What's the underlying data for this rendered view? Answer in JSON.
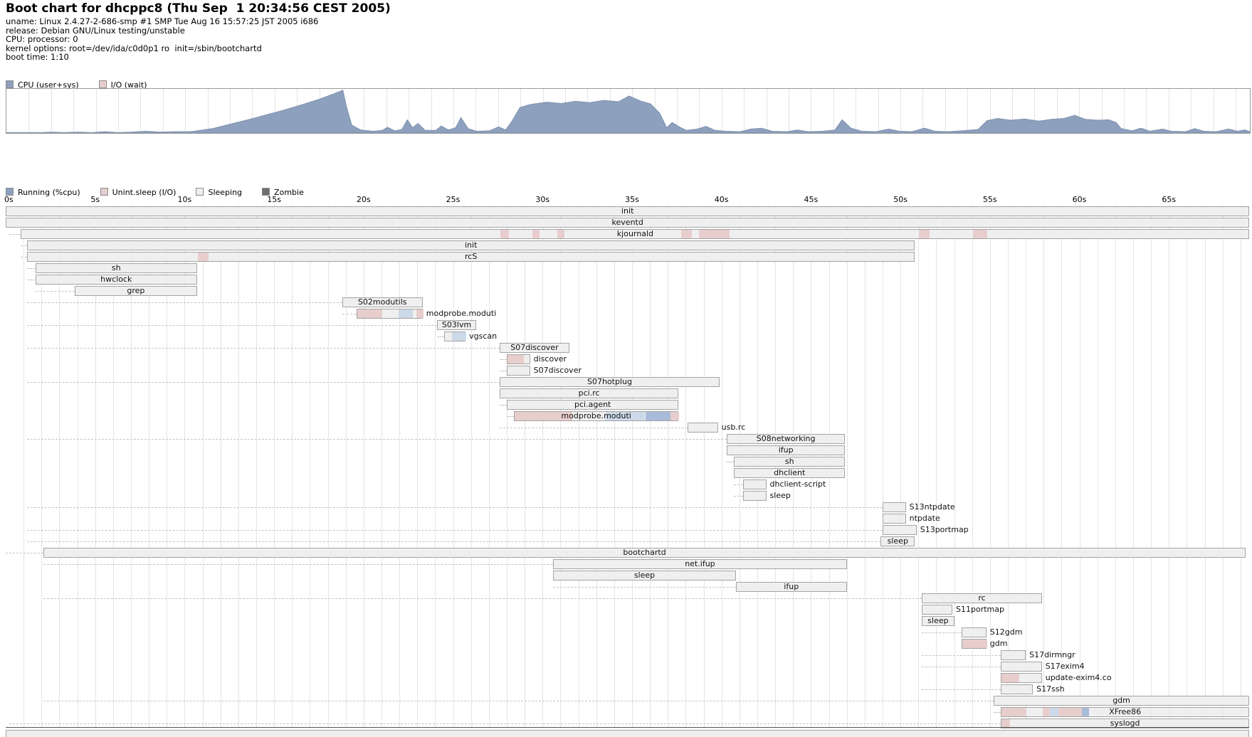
{
  "header": {
    "title": "Boot chart for dhcppc8 (Thu Sep  1 20:34:56 CEST 2005)",
    "info_lines": [
      "uname: Linux 2.4.27-2-686-smp #1 SMP Tue Aug 16 15:57:25 JST 2005 i686",
      "release: Debian GNU/Linux testing/unstable",
      "CPU: processor: 0",
      "kernel options: root=/dev/ida/c0d0p1 ro  init=/sbin/bootchartd",
      "boot time: 1:10"
    ]
  },
  "colors": {
    "running_blue": "#8da0bd",
    "running_blue_stroke": "#7e91af",
    "io_pink": "#e8cdcd",
    "sleeping_gray": "#f0efef",
    "zombie_gray": "#6e6e6e",
    "seg_pink": "#e8cdcd",
    "seg_lightblue": "#ccd9e8",
    "seg_blue": "#a7bcd8"
  },
  "cpu_legend": {
    "items": [
      {
        "label": "CPU (user+sys)",
        "color": "#8da0bd"
      },
      {
        "label": "I/O (wait)",
        "color": "#e8cdcd"
      }
    ]
  },
  "proc_legend": {
    "items": [
      {
        "label": "Running (%cpu)",
        "color": "#8da0bd"
      },
      {
        "label": "Unint.sleep (I/O)",
        "color": "#e8cdcd"
      },
      {
        "label": "Sleeping",
        "color": "#f0efef"
      },
      {
        "label": "Zombie",
        "color": "#6e6e6e"
      }
    ]
  },
  "chart_data": [
    {
      "type": "area",
      "title": "CPU usage",
      "legend": [
        "CPU (user+sys)",
        "I/O (wait)"
      ],
      "xlim": [
        0,
        69.5
      ],
      "ylim": [
        0,
        100
      ],
      "grid": true,
      "series": [
        {
          "name": "CPU (user+sys)",
          "points": [
            [
              0,
              1
            ],
            [
              2,
              1
            ],
            [
              2.5,
              2
            ],
            [
              3.2,
              1
            ],
            [
              4,
              2
            ],
            [
              4.8,
              1
            ],
            [
              5.5,
              3
            ],
            [
              6.2,
              1
            ],
            [
              7,
              2
            ],
            [
              7.8,
              4
            ],
            [
              8.6,
              2
            ],
            [
              9.4,
              3
            ],
            [
              10.2,
              3
            ],
            [
              10.5,
              4
            ],
            [
              11.5,
              10
            ],
            [
              12.5,
              20
            ],
            [
              13.5,
              30
            ],
            [
              14.5,
              41
            ],
            [
              15.5,
              52
            ],
            [
              16.5,
              64
            ],
            [
              17.5,
              77
            ],
            [
              18.3,
              89
            ],
            [
              18.8,
              97
            ],
            [
              19.0,
              60
            ],
            [
              19.3,
              18
            ],
            [
              19.8,
              7
            ],
            [
              20.5,
              4
            ],
            [
              21.0,
              6
            ],
            [
              21.3,
              13
            ],
            [
              21.7,
              5
            ],
            [
              22.1,
              8
            ],
            [
              22.4,
              30
            ],
            [
              22.7,
              12
            ],
            [
              23.0,
              22
            ],
            [
              23.4,
              6
            ],
            [
              24.0,
              6
            ],
            [
              24.3,
              16
            ],
            [
              24.7,
              7
            ],
            [
              25.1,
              12
            ],
            [
              25.4,
              35
            ],
            [
              25.8,
              10
            ],
            [
              26.3,
              4
            ],
            [
              27.0,
              5
            ],
            [
              27.5,
              14
            ],
            [
              27.9,
              7
            ],
            [
              28.3,
              30
            ],
            [
              28.7,
              58
            ],
            [
              29.3,
              65
            ],
            [
              30.2,
              70
            ],
            [
              31.0,
              67
            ],
            [
              31.8,
              72
            ],
            [
              32.6,
              69
            ],
            [
              33.4,
              74
            ],
            [
              34.2,
              71
            ],
            [
              34.8,
              84
            ],
            [
              35.4,
              73
            ],
            [
              36.0,
              66
            ],
            [
              36.5,
              45
            ],
            [
              36.9,
              12
            ],
            [
              37.2,
              24
            ],
            [
              37.6,
              14
            ],
            [
              38.0,
              6
            ],
            [
              38.6,
              9
            ],
            [
              39.1,
              15
            ],
            [
              39.6,
              6
            ],
            [
              40.2,
              4
            ],
            [
              41.0,
              3
            ],
            [
              41.6,
              9
            ],
            [
              42.2,
              11
            ],
            [
              42.8,
              4
            ],
            [
              43.6,
              3
            ],
            [
              44.2,
              7
            ],
            [
              44.8,
              3
            ],
            [
              45.6,
              4
            ],
            [
              46.3,
              7
            ],
            [
              46.7,
              30
            ],
            [
              47.2,
              11
            ],
            [
              47.8,
              4
            ],
            [
              48.6,
              3
            ],
            [
              49.3,
              9
            ],
            [
              49.9,
              4
            ],
            [
              50.6,
              3
            ],
            [
              51.3,
              11
            ],
            [
              51.9,
              4
            ],
            [
              52.6,
              3
            ],
            [
              53.4,
              5
            ],
            [
              54.3,
              8
            ],
            [
              54.8,
              28
            ],
            [
              55.4,
              33
            ],
            [
              56.1,
              29
            ],
            [
              56.9,
              32
            ],
            [
              57.7,
              27
            ],
            [
              58.4,
              31
            ],
            [
              59.1,
              33
            ],
            [
              59.7,
              40
            ],
            [
              60.3,
              31
            ],
            [
              61.0,
              29
            ],
            [
              61.6,
              30
            ],
            [
              62.0,
              24
            ],
            [
              62.3,
              10
            ],
            [
              62.9,
              5
            ],
            [
              63.4,
              11
            ],
            [
              63.9,
              4
            ],
            [
              64.6,
              9
            ],
            [
              65.1,
              4
            ],
            [
              65.9,
              3
            ],
            [
              66.4,
              10
            ],
            [
              66.9,
              4
            ],
            [
              67.6,
              3
            ],
            [
              68.3,
              9
            ],
            [
              68.8,
              4
            ],
            [
              69.2,
              7
            ],
            [
              69.5,
              3
            ]
          ]
        }
      ]
    },
    {
      "type": "gantt",
      "title": "Process chart",
      "legend": [
        "Running (%cpu)",
        "Unint.sleep (I/O)",
        "Sleeping",
        "Zombie"
      ],
      "xlim": [
        0,
        69.5
      ],
      "tick_seconds": [
        0,
        5,
        10,
        15,
        20,
        25,
        30,
        35,
        40,
        45,
        50,
        55,
        60,
        65
      ],
      "tick_labels": [
        "0s",
        "5s",
        "10s",
        "15s",
        "20s",
        "25s",
        "30s",
        "35s",
        "40s",
        "45s",
        "50s",
        "55s",
        "60s",
        "65s"
      ],
      "rows": [
        {
          "label": "init",
          "start": 0,
          "end": 69.5,
          "pos": "c"
        },
        {
          "label": "keventd",
          "start": 0,
          "end": 69.5,
          "pos": "c"
        },
        {
          "label": "kjournald",
          "start": 0.85,
          "end": 69.5,
          "pos": "c",
          "conn": 0.2,
          "segs": [
            [
              27.6,
              28.1,
              "pink"
            ],
            [
              29.4,
              29.8,
              "pink"
            ],
            [
              30.8,
              31.2,
              "pink"
            ],
            [
              37.7,
              38.3,
              "pink"
            ],
            [
              38.7,
              40.4,
              "pink"
            ],
            [
              51.0,
              51.6,
              "pink"
            ],
            [
              54.0,
              54.8,
              "pink"
            ]
          ]
        },
        {
          "label": "init",
          "start": 1.2,
          "end": 50.8,
          "pos": "c",
          "conn": 0.85
        },
        {
          "label": "rcS",
          "start": 1.2,
          "end": 50.8,
          "pos": "c",
          "conn": 0.85,
          "segs": [
            [
              10.7,
              11.3,
              "pink"
            ]
          ]
        },
        {
          "label": "sh",
          "start": 1.65,
          "end": 10.7,
          "pos": "c",
          "conn": 1.2
        },
        {
          "label": "hwclock",
          "start": 1.65,
          "end": 10.7,
          "pos": "c",
          "conn": 1.2
        },
        {
          "label": "grep",
          "start": 3.85,
          "end": 10.7,
          "pos": "c",
          "conn": 1.65
        },
        {
          "label": "S02modutils",
          "start": 18.8,
          "end": 23.3,
          "pos": "c",
          "conn": 1.2
        },
        {
          "label": "modprobe.moduti",
          "start": 19.6,
          "end": 23.3,
          "pos": "r",
          "conn": 18.8,
          "segs": [
            [
              19.6,
              21.0,
              "pink"
            ],
            [
              21.9,
              22.7,
              "lblue"
            ],
            [
              22.9,
              23.3,
              "pink"
            ]
          ]
        },
        {
          "label": "S03lvm",
          "start": 24.1,
          "end": 26.3,
          "pos": "c",
          "conn": 1.2
        },
        {
          "label": "vgscan",
          "start": 24.5,
          "end": 25.7,
          "pos": "r",
          "conn": 24.1,
          "segs": [
            [
              24.9,
              25.7,
              "lblue"
            ]
          ]
        },
        {
          "label": "S07discover",
          "start": 27.6,
          "end": 31.5,
          "pos": "c",
          "conn": 1.2
        },
        {
          "label": "discover",
          "start": 28.0,
          "end": 29.3,
          "pos": "r",
          "conn": 27.6,
          "segs": [
            [
              28.0,
              28.9,
              "pink"
            ]
          ]
        },
        {
          "label": "S07discover",
          "start": 28.0,
          "end": 29.3,
          "pos": "r",
          "conn": 27.6
        },
        {
          "label": "S07hotplug",
          "start": 27.6,
          "end": 39.9,
          "pos": "c",
          "conn": 1.2
        },
        {
          "label": "pci.rc",
          "start": 27.6,
          "end": 37.6,
          "pos": "c",
          "conn": 27.6
        },
        {
          "label": "pci.agent",
          "start": 28.0,
          "end": 37.6,
          "pos": "c",
          "conn": 27.6
        },
        {
          "label": "modprobe.moduti",
          "start": 28.4,
          "end": 37.6,
          "pos": "c",
          "conn": 28.0,
          "segs": [
            [
              28.4,
              31.6,
              "pink"
            ],
            [
              33.5,
              35.7,
              "lblue"
            ],
            [
              35.7,
              37.1,
              "blue"
            ],
            [
              37.1,
              37.6,
              "pink"
            ]
          ]
        },
        {
          "label": "usb.rc",
          "start": 38.1,
          "end": 39.8,
          "pos": "r",
          "conn": 27.6
        },
        {
          "label": "S08networking",
          "start": 40.3,
          "end": 46.9,
          "pos": "c",
          "conn": 1.2
        },
        {
          "label": "ifup",
          "start": 40.3,
          "end": 46.9,
          "pos": "c",
          "conn": 40.3
        },
        {
          "label": "sh",
          "start": 40.7,
          "end": 46.9,
          "pos": "c",
          "conn": 40.3
        },
        {
          "label": "dhclient",
          "start": 40.7,
          "end": 46.9,
          "pos": "c",
          "conn": 40.7
        },
        {
          "label": "dhclient-script",
          "start": 41.2,
          "end": 42.5,
          "pos": "r",
          "conn": 40.7
        },
        {
          "label": "sleep",
          "start": 41.2,
          "end": 42.5,
          "pos": "r",
          "conn": 40.7
        },
        {
          "label": "S13ntpdate",
          "start": 49.0,
          "end": 50.3,
          "pos": "r",
          "conn": 1.2
        },
        {
          "label": "ntpdate",
          "start": 49.0,
          "end": 50.3,
          "pos": "r",
          "conn": 49.0
        },
        {
          "label": "S13portmap",
          "start": 49.0,
          "end": 50.9,
          "pos": "r",
          "conn": 1.2
        },
        {
          "label": "sleep",
          "start": 48.9,
          "end": 50.8,
          "pos": "i",
          "conn": 1.2
        },
        {
          "label": "bootchartd",
          "start": 2.1,
          "end": 69.3,
          "pos": "c",
          "conn": 0
        },
        {
          "label": "net.ifup",
          "start": 30.6,
          "end": 47.0,
          "pos": "c",
          "conn": 2.1
        },
        {
          "label": "sleep",
          "start": 30.6,
          "end": 40.8,
          "pos": "c",
          "conn": 30.6
        },
        {
          "label": "ifup",
          "start": 40.8,
          "end": 47.0,
          "pos": "c",
          "conn": 30.6
        },
        {
          "label": "rc",
          "start": 51.2,
          "end": 57.9,
          "pos": "c",
          "conn": 2.1
        },
        {
          "label": "S11portmap",
          "start": 51.2,
          "end": 52.9,
          "pos": "r",
          "conn": 51.2
        },
        {
          "label": "sleep",
          "start": 51.2,
          "end": 53.0,
          "pos": "i",
          "conn": 51.2
        },
        {
          "label": "S12gdm",
          "start": 53.4,
          "end": 54.8,
          "pos": "r",
          "conn": 51.2
        },
        {
          "label": "gdm",
          "start": 53.4,
          "end": 54.8,
          "pos": "r",
          "conn": 53.4,
          "segs": [
            [
              53.4,
              54.8,
              "pink"
            ]
          ]
        },
        {
          "label": "S17dirmngr",
          "start": 55.6,
          "end": 57.0,
          "pos": "r",
          "conn": 51.2
        },
        {
          "label": "S17exim4",
          "start": 55.6,
          "end": 57.9,
          "pos": "r",
          "conn": 51.2
        },
        {
          "label": "update-exim4.co",
          "start": 55.6,
          "end": 57.9,
          "pos": "r",
          "conn": 55.6,
          "segs": [
            [
              55.6,
              56.6,
              "pink"
            ]
          ]
        },
        {
          "label": "S17ssh",
          "start": 55.6,
          "end": 57.4,
          "pos": "r",
          "conn": 51.2
        },
        {
          "label": "gdm",
          "start": 55.2,
          "end": 69.5,
          "pos": "c",
          "conn": 2.1
        },
        {
          "label": "XFree86",
          "start": 55.6,
          "end": 69.5,
          "pos": "c",
          "conn": 55.2,
          "segs": [
            [
              55.6,
              57.0,
              "pink"
            ],
            [
              57.9,
              58.3,
              "pink"
            ],
            [
              58.3,
              58.8,
              "lblue"
            ],
            [
              58.8,
              60.1,
              "pink"
            ],
            [
              60.1,
              60.5,
              "blue"
            ]
          ]
        },
        {
          "label": "syslogd",
          "start": 55.6,
          "end": 69.5,
          "pos": "c",
          "conn": 0.2,
          "segs": [
            [
              55.6,
              56.1,
              "pink"
            ]
          ]
        },
        {
          "label": "",
          "start": 0,
          "end": 69.5,
          "pos": "c",
          "conn": 0.2
        }
      ]
    }
  ]
}
